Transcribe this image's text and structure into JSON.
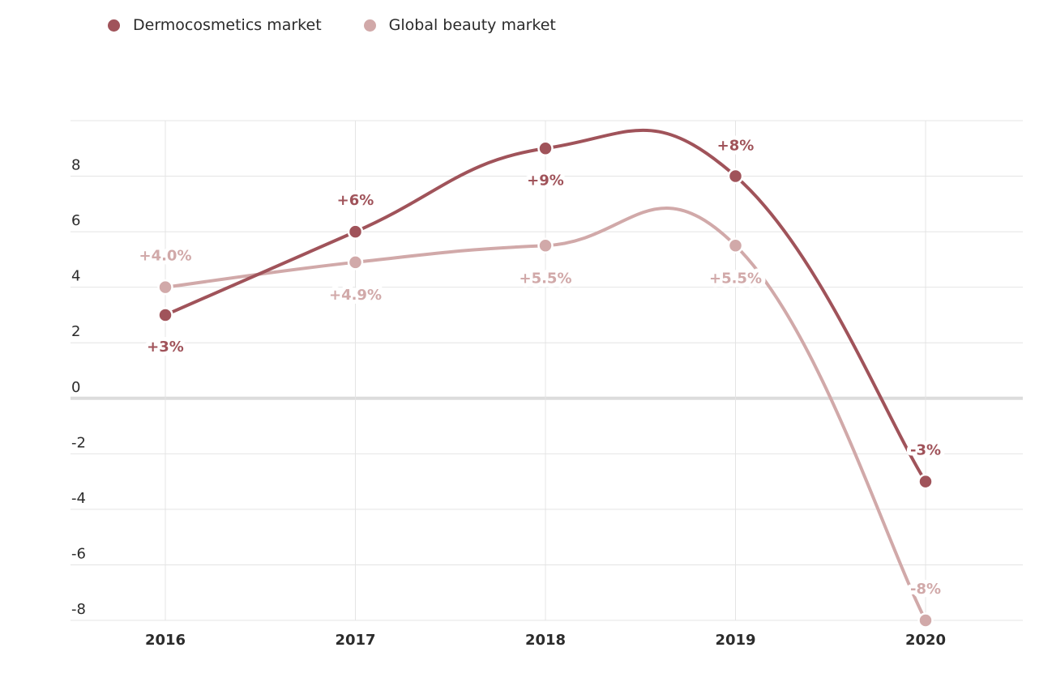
{
  "chart_data": {
    "type": "line",
    "title": "",
    "xlabel": "",
    "ylabel": "",
    "categories": [
      "2016",
      "2017",
      "2018",
      "2019",
      "2020"
    ],
    "ylim": [
      -8,
      10
    ],
    "yticks": [
      8,
      6,
      4,
      2,
      0,
      -2,
      -4,
      -6,
      -8
    ],
    "grid": true,
    "legend_position": "top-left",
    "series": [
      {
        "name": "Dermocosmetics market",
        "color": "#a0535a",
        "values": [
          3,
          6,
          9,
          8,
          -3
        ],
        "labels": [
          "+3%",
          "+6%",
          "+9%",
          "+8%",
          "-3%"
        ]
      },
      {
        "name": "Global beauty market",
        "color": "#d1a9a9",
        "values": [
          4.0,
          4.9,
          5.5,
          5.5,
          -8
        ],
        "labels": [
          "+4.0%",
          "+4.9%",
          "+5.5%",
          "+5.5%",
          "-8%"
        ]
      }
    ]
  }
}
